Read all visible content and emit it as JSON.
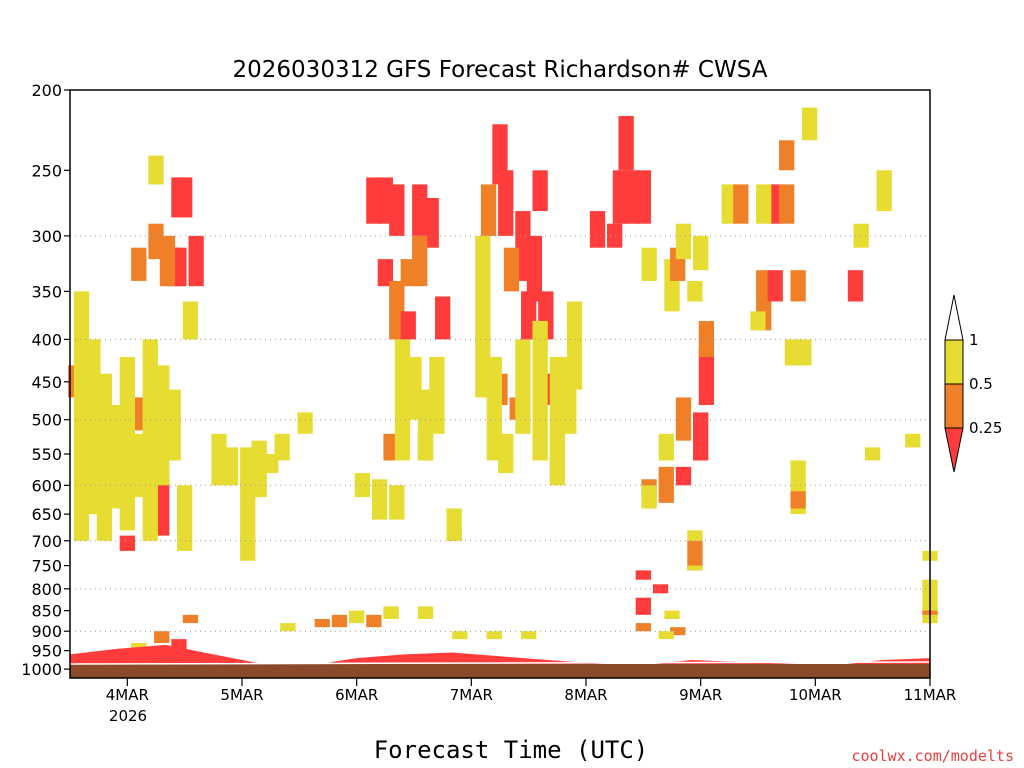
{
  "chart_data": {
    "type": "heatmap",
    "title": "2026030312 GFS Forecast Richardson# CWSA",
    "xlabel": "Forecast Time (UTC)",
    "ylabel": "",
    "credit": "coolwx.com/modelts",
    "y_axis": {
      "scale": "log",
      "ticks": [
        200,
        250,
        300,
        350,
        400,
        450,
        500,
        550,
        600,
        650,
        700,
        750,
        800,
        850,
        900,
        950,
        1000
      ],
      "range": [
        1025,
        200
      ],
      "dotted_grid": [
        300,
        400,
        500,
        600,
        700,
        800,
        900
      ]
    },
    "x_axis": {
      "ticks": [
        "4MAR",
        "5MAR",
        "6MAR",
        "7MAR",
        "8MAR",
        "9MAR",
        "10MAR",
        "11MAR"
      ],
      "tick_days": [
        4,
        5,
        6,
        7,
        8,
        9,
        10,
        11
      ],
      "sublabel": "2026",
      "range_days": [
        3.5,
        11
      ]
    },
    "legend": {
      "placement": "right",
      "bounds": [
        "1",
        "0.5",
        "0.25"
      ],
      "bins": [
        {
          "range": "< 0.25",
          "color": "#ff3c3c"
        },
        {
          "range": "0.25 - 0.5",
          "color": "#f08028"
        },
        {
          "range": "0.5 - 1",
          "color": "#e6dc32"
        },
        {
          "range": "> 1",
          "color": "#ffffff"
        }
      ]
    },
    "ground_color": "#8b4a2a",
    "cells": [
      {
        "t": 4.45,
        "p": [
          255,
          285
        ],
        "c": "r"
      },
      {
        "t": 4.5,
        "p": [
          255,
          285
        ],
        "c": "r"
      },
      {
        "t": 4.4,
        "p": [
          310,
          345
        ],
        "c": "r"
      },
      {
        "t": 4.45,
        "p": [
          310,
          345
        ],
        "c": "r"
      },
      {
        "t": 4.35,
        "p": [
          300,
          345
        ],
        "c": "o"
      },
      {
        "t": 4.6,
        "p": [
          300,
          345
        ],
        "c": "r"
      },
      {
        "t": 4.25,
        "p": [
          290,
          320
        ],
        "c": "o"
      },
      {
        "t": 4.1,
        "p": [
          310,
          340
        ],
        "c": "o"
      },
      {
        "t": 4.05,
        "p": [
          470,
          515
        ],
        "c": "o"
      },
      {
        "t": 4.15,
        "p": [
          470,
          515
        ],
        "c": "o"
      },
      {
        "t": 4.0,
        "p": [
          480,
          520
        ],
        "c": "o"
      },
      {
        "t": 4.35,
        "p": [
          490,
          520
        ],
        "c": "o"
      },
      {
        "t": 4.3,
        "p": [
          590,
          690
        ],
        "c": "r"
      },
      {
        "t": 4.0,
        "p": [
          690,
          720
        ],
        "c": "r"
      },
      {
        "t": 3.55,
        "p": [
          430,
          470
        ],
        "c": "o"
      },
      {
        "t": 3.6,
        "p": [
          350,
          700
        ],
        "c": "y"
      },
      {
        "t": 3.7,
        "p": [
          400,
          650
        ],
        "c": "y"
      },
      {
        "t": 3.8,
        "p": [
          440,
          700
        ],
        "c": "y"
      },
      {
        "t": 3.9,
        "p": [
          480,
          640
        ],
        "c": "y"
      },
      {
        "t": 4.0,
        "p": [
          420,
          680
        ],
        "c": "y"
      },
      {
        "t": 4.1,
        "p": [
          520,
          620
        ],
        "c": "y"
      },
      {
        "t": 4.2,
        "p": [
          400,
          700
        ],
        "c": "y"
      },
      {
        "t": 4.3,
        "p": [
          430,
          600
        ],
        "c": "y"
      },
      {
        "t": 4.4,
        "p": [
          460,
          560
        ],
        "c": "y"
      },
      {
        "t": 4.5,
        "p": [
          600,
          720
        ],
        "c": "y"
      },
      {
        "t": 4.25,
        "p": [
          240,
          260
        ],
        "c": "y"
      },
      {
        "t": 4.55,
        "p": [
          360,
          400
        ],
        "c": "y"
      },
      {
        "t": 4.8,
        "p": [
          520,
          600
        ],
        "c": "y"
      },
      {
        "t": 4.9,
        "p": [
          540,
          600
        ],
        "c": "y"
      },
      {
        "t": 5.05,
        "p": [
          540,
          740
        ],
        "c": "y"
      },
      {
        "t": 5.15,
        "p": [
          530,
          620
        ],
        "c": "y"
      },
      {
        "t": 5.25,
        "p": [
          550,
          580
        ],
        "c": "y"
      },
      {
        "t": 5.35,
        "p": [
          520,
          560
        ],
        "c": "y"
      },
      {
        "t": 5.55,
        "p": [
          490,
          520
        ],
        "c": "y"
      },
      {
        "t": 6.15,
        "p": [
          255,
          290
        ],
        "c": "r"
      },
      {
        "t": 6.25,
        "p": [
          255,
          290
        ],
        "c": "r"
      },
      {
        "t": 6.35,
        "p": [
          260,
          300
        ],
        "c": "r"
      },
      {
        "t": 6.55,
        "p": [
          260,
          300
        ],
        "c": "r"
      },
      {
        "t": 6.65,
        "p": [
          270,
          310
        ],
        "c": "r"
      },
      {
        "t": 6.25,
        "p": [
          320,
          345
        ],
        "c": "r"
      },
      {
        "t": 6.45,
        "p": [
          320,
          345
        ],
        "c": "o"
      },
      {
        "t": 6.55,
        "p": [
          300,
          345
        ],
        "c": "o"
      },
      {
        "t": 6.35,
        "p": [
          340,
          400
        ],
        "c": "o"
      },
      {
        "t": 6.45,
        "p": [
          370,
          400
        ],
        "c": "r"
      },
      {
        "t": 6.75,
        "p": [
          355,
          400
        ],
        "c": "r"
      },
      {
        "t": 6.6,
        "p": [
          520,
          560
        ],
        "c": "o"
      },
      {
        "t": 6.3,
        "p": [
          520,
          560
        ],
        "c": "o"
      },
      {
        "t": 6.85,
        "p": [
          680,
          700
        ],
        "c": "o"
      },
      {
        "t": 6.4,
        "p": [
          400,
          560
        ],
        "c": "y"
      },
      {
        "t": 6.5,
        "p": [
          420,
          500
        ],
        "c": "y"
      },
      {
        "t": 6.6,
        "p": [
          460,
          560
        ],
        "c": "y"
      },
      {
        "t": 6.7,
        "p": [
          420,
          520
        ],
        "c": "y"
      },
      {
        "t": 6.2,
        "p": [
          590,
          660
        ],
        "c": "y"
      },
      {
        "t": 6.35,
        "p": [
          600,
          660
        ],
        "c": "y"
      },
      {
        "t": 6.85,
        "p": [
          640,
          700
        ],
        "c": "y"
      },
      {
        "t": 6.05,
        "p": [
          580,
          620
        ],
        "c": "y"
      },
      {
        "t": 7.25,
        "p": [
          220,
          260
        ],
        "c": "r"
      },
      {
        "t": 7.3,
        "p": [
          250,
          300
        ],
        "c": "r"
      },
      {
        "t": 7.45,
        "p": [
          280,
          340
        ],
        "c": "r"
      },
      {
        "t": 7.55,
        "p": [
          300,
          360
        ],
        "c": "r"
      },
      {
        "t": 7.6,
        "p": [
          250,
          280
        ],
        "c": "r"
      },
      {
        "t": 7.15,
        "p": [
          260,
          300
        ],
        "c": "o"
      },
      {
        "t": 7.35,
        "p": [
          310,
          350
        ],
        "c": "o"
      },
      {
        "t": 7.5,
        "p": [
          350,
          400
        ],
        "c": "r"
      },
      {
        "t": 7.65,
        "p": [
          350,
          400
        ],
        "c": "r"
      },
      {
        "t": 7.7,
        "p": [
          440,
          480
        ],
        "c": "r"
      },
      {
        "t": 7.25,
        "p": [
          440,
          480
        ],
        "c": "o"
      },
      {
        "t": 7.4,
        "p": [
          470,
          500
        ],
        "c": "o"
      },
      {
        "t": 7.1,
        "p": [
          300,
          470
        ],
        "c": "y"
      },
      {
        "t": 7.2,
        "p": [
          420,
          560
        ],
        "c": "y"
      },
      {
        "t": 7.3,
        "p": [
          520,
          580
        ],
        "c": "y"
      },
      {
        "t": 7.45,
        "p": [
          400,
          520
        ],
        "c": "y"
      },
      {
        "t": 7.6,
        "p": [
          380,
          560
        ],
        "c": "y"
      },
      {
        "t": 7.75,
        "p": [
          420,
          600
        ],
        "c": "y"
      },
      {
        "t": 7.9,
        "p": [
          360,
          460
        ],
        "c": "y"
      },
      {
        "t": 7.85,
        "p": [
          420,
          520
        ],
        "c": "y"
      },
      {
        "t": 8.3,
        "p": [
          250,
          290
        ],
        "c": "r"
      },
      {
        "t": 8.4,
        "p": [
          250,
          290
        ],
        "c": "r"
      },
      {
        "t": 8.5,
        "p": [
          250,
          290
        ],
        "c": "r"
      },
      {
        "t": 8.25,
        "p": [
          290,
          310
        ],
        "c": "r"
      },
      {
        "t": 8.1,
        "p": [
          280,
          310
        ],
        "c": "r"
      },
      {
        "t": 8.35,
        "p": [
          215,
          250
        ],
        "c": "r"
      },
      {
        "t": 8.55,
        "p": [
          310,
          340
        ],
        "c": "y"
      },
      {
        "t": 8.75,
        "p": [
          320,
          370
        ],
        "c": "y"
      },
      {
        "t": 8.95,
        "p": [
          340,
          360
        ],
        "c": "y"
      },
      {
        "t": 8.55,
        "p": [
          590,
          630
        ],
        "c": "o"
      },
      {
        "t": 8.7,
        "p": [
          570,
          630
        ],
        "c": "o"
      },
      {
        "t": 8.85,
        "p": [
          570,
          600
        ],
        "c": "r"
      },
      {
        "t": 9.0,
        "p": [
          490,
          560
        ],
        "c": "r"
      },
      {
        "t": 9.05,
        "p": [
          410,
          480
        ],
        "c": "r"
      },
      {
        "t": 8.85,
        "p": [
          470,
          530
        ],
        "c": "o"
      },
      {
        "t": 9.05,
        "p": [
          380,
          420
        ],
        "c": "o"
      },
      {
        "t": 8.8,
        "p": [
          310,
          340
        ],
        "c": "o"
      },
      {
        "t": 8.85,
        "p": [
          290,
          320
        ],
        "c": "y"
      },
      {
        "t": 9.0,
        "p": [
          300,
          330
        ],
        "c": "y"
      },
      {
        "t": 8.95,
        "p": [
          700,
          760
        ],
        "c": "o"
      },
      {
        "t": 8.95,
        "p": [
          680,
          700
        ],
        "c": "y"
      },
      {
        "t": 8.95,
        "p": [
          750,
          760
        ],
        "c": "y"
      },
      {
        "t": 8.55,
        "p": [
          600,
          640
        ],
        "c": "y"
      },
      {
        "t": 8.7,
        "p": [
          520,
          560
        ],
        "c": "y"
      },
      {
        "t": 9.25,
        "p": [
          260,
          290
        ],
        "c": "y"
      },
      {
        "t": 9.35,
        "p": [
          260,
          290
        ],
        "c": "o"
      },
      {
        "t": 9.65,
        "p": [
          260,
          290
        ],
        "c": "r"
      },
      {
        "t": 9.75,
        "p": [
          260,
          290
        ],
        "c": "o"
      },
      {
        "t": 9.55,
        "p": [
          260,
          290
        ],
        "c": "y"
      },
      {
        "t": 9.75,
        "p": [
          230,
          250
        ],
        "c": "o"
      },
      {
        "t": 9.55,
        "p": [
          330,
          360
        ],
        "c": "o"
      },
      {
        "t": 9.55,
        "p": [
          360,
          390
        ],
        "c": "o"
      },
      {
        "t": 9.65,
        "p": [
          330,
          360
        ],
        "c": "r"
      },
      {
        "t": 9.85,
        "p": [
          330,
          360
        ],
        "c": "o"
      },
      {
        "t": 10.35,
        "p": [
          330,
          360
        ],
        "c": "r"
      },
      {
        "t": 9.8,
        "p": [
          400,
          430
        ],
        "c": "y"
      },
      {
        "t": 9.9,
        "p": [
          400,
          430
        ],
        "c": "y"
      },
      {
        "t": 9.85,
        "p": [
          560,
          650
        ],
        "c": "y"
      },
      {
        "t": 9.85,
        "p": [
          610,
          640
        ],
        "c": "o"
      },
      {
        "t": 9.95,
        "p": [
          210,
          230
        ],
        "c": "y"
      },
      {
        "t": 10.4,
        "p": [
          290,
          310
        ],
        "c": "y"
      },
      {
        "t": 10.6,
        "p": [
          250,
          280
        ],
        "c": "y"
      },
      {
        "t": 9.5,
        "p": [
          370,
          390
        ],
        "c": "y"
      },
      {
        "t": 10.5,
        "p": [
          540,
          560
        ],
        "c": "y"
      },
      {
        "t": 10.85,
        "p": [
          520,
          540
        ],
        "c": "y"
      },
      {
        "t": 11.0,
        "p": [
          780,
          880
        ],
        "c": "y"
      },
      {
        "t": 11.0,
        "p": [
          850,
          860
        ],
        "c": "o"
      },
      {
        "t": 11.0,
        "p": [
          720,
          740
        ],
        "c": "y"
      },
      {
        "t": 6.3,
        "p": [
          840,
          870
        ],
        "c": "y"
      },
      {
        "t": 6.6,
        "p": [
          840,
          870
        ],
        "c": "y"
      },
      {
        "t": 6.0,
        "p": [
          850,
          880
        ],
        "c": "y"
      },
      {
        "t": 5.7,
        "p": [
          870,
          890
        ],
        "c": "o"
      },
      {
        "t": 5.85,
        "p": [
          860,
          890
        ],
        "c": "o"
      },
      {
        "t": 6.15,
        "p": [
          860,
          890
        ],
        "c": "o"
      },
      {
        "t": 5.4,
        "p": [
          880,
          900
        ],
        "c": "y"
      },
      {
        "t": 6.9,
        "p": [
          900,
          920
        ],
        "c": "y"
      },
      {
        "t": 7.2,
        "p": [
          900,
          920
        ],
        "c": "y"
      },
      {
        "t": 7.5,
        "p": [
          900,
          920
        ],
        "c": "y"
      },
      {
        "t": 8.5,
        "p": [
          760,
          780
        ],
        "c": "r"
      },
      {
        "t": 8.5,
        "p": [
          820,
          860
        ],
        "c": "r"
      },
      {
        "t": 8.65,
        "p": [
          790,
          810
        ],
        "c": "r"
      },
      {
        "t": 8.8,
        "p": [
          890,
          910
        ],
        "c": "o"
      },
      {
        "t": 8.75,
        "p": [
          850,
          870
        ],
        "c": "y"
      },
      {
        "t": 8.5,
        "p": [
          880,
          900
        ],
        "c": "o"
      },
      {
        "t": 8.7,
        "p": [
          900,
          920
        ],
        "c": "y"
      },
      {
        "t": 4.55,
        "p": [
          860,
          880
        ],
        "c": "o"
      },
      {
        "t": 4.1,
        "p": [
          930,
          950
        ],
        "c": "y"
      },
      {
        "t": 4.3,
        "p": [
          900,
          930
        ],
        "c": "o"
      },
      {
        "t": 4.45,
        "p": [
          920,
          950
        ],
        "c": "r"
      }
    ],
    "surface_band": {
      "p_top": [
        960,
        945,
        935,
        960,
        985,
        990,
        970,
        960,
        955,
        965,
        975,
        985,
        990,
        975,
        980,
        985,
        990,
        975,
        970
      ],
      "color": "r"
    }
  }
}
